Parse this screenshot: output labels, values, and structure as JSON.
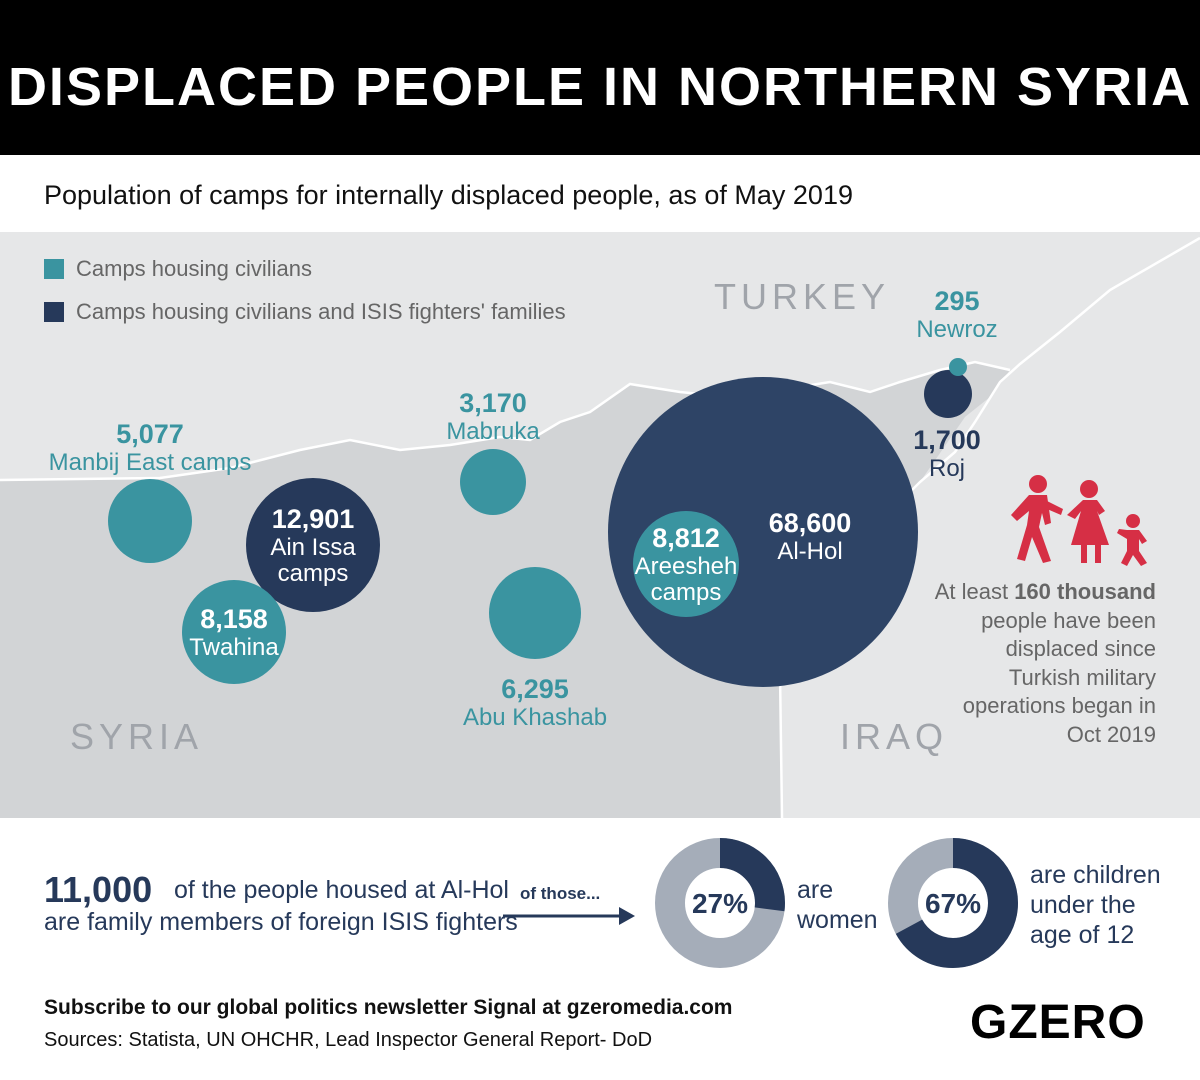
{
  "title": "DISPLACED PEOPLE IN NORTHERN SYRIA",
  "subtitle": "Population of camps for internally displaced people, as of May 2019",
  "legend": {
    "civilians": "Camps housing civilians",
    "families": "Camps housing civilians and ISIS fighters' families"
  },
  "colors": {
    "civilians": "#3a94a0",
    "families": "#26395a",
    "land_syria": "#d2d4d6",
    "land_other": "#e6e7e8",
    "header": "#000000"
  },
  "countries": {
    "turkey": "TURKEY",
    "syria": "SYRIA",
    "iraq": "IRAQ"
  },
  "camps": [
    {
      "name": "Manbij East camps",
      "value": "5,077",
      "population": 5077,
      "type": "civilians"
    },
    {
      "name": "Ain Issa camps",
      "value": "12,901",
      "population": 12901,
      "type": "families"
    },
    {
      "name": "Twahina",
      "value": "8,158",
      "population": 8158,
      "type": "civilians"
    },
    {
      "name": "Mabruka",
      "value": "3,170",
      "population": 3170,
      "type": "civilians"
    },
    {
      "name": "Abu Khashab",
      "value": "6,295",
      "population": 6295,
      "type": "civilians"
    },
    {
      "name": "Al-Hol",
      "value": "68,600",
      "population": 68600,
      "type": "families"
    },
    {
      "name": "Areesheh camps",
      "name_l1": "Areesheh",
      "name_l2": "camps",
      "value": "8,812",
      "population": 8812,
      "type": "civilians"
    },
    {
      "name": "Newroz",
      "value": "295",
      "population": 295,
      "type": "civilians"
    },
    {
      "name": "Roj",
      "value": "1,700",
      "population": 1700,
      "type": "families"
    }
  ],
  "ain_issa_l1": "Ain Issa",
  "ain_issa_l2": "camps",
  "note": {
    "pre": "At least ",
    "bold": "160 thousand",
    "post": " people have been displaced since Turkish military operations began in Oct 2019"
  },
  "stat": {
    "number": "11,000",
    "line1": "of the people housed at Al-Hol",
    "line2": "are family members of foreign ISIS fighters",
    "of_those": "of those..."
  },
  "donuts": [
    {
      "percent": 27,
      "label": "27%",
      "text_l1": "are",
      "text_l2": "women",
      "text_l3": ""
    },
    {
      "percent": 67,
      "label": "67%",
      "text_l1": "are children",
      "text_l2": "under the",
      "text_l3": "age of 12"
    }
  ],
  "footer": {
    "subscribe": "Subscribe to our global politics newsletter Signal at gzeromedia.com",
    "sources": "Sources: Statista, UN OHCHR, Lead Inspector General Report- DoD",
    "logo": "GZERO"
  }
}
